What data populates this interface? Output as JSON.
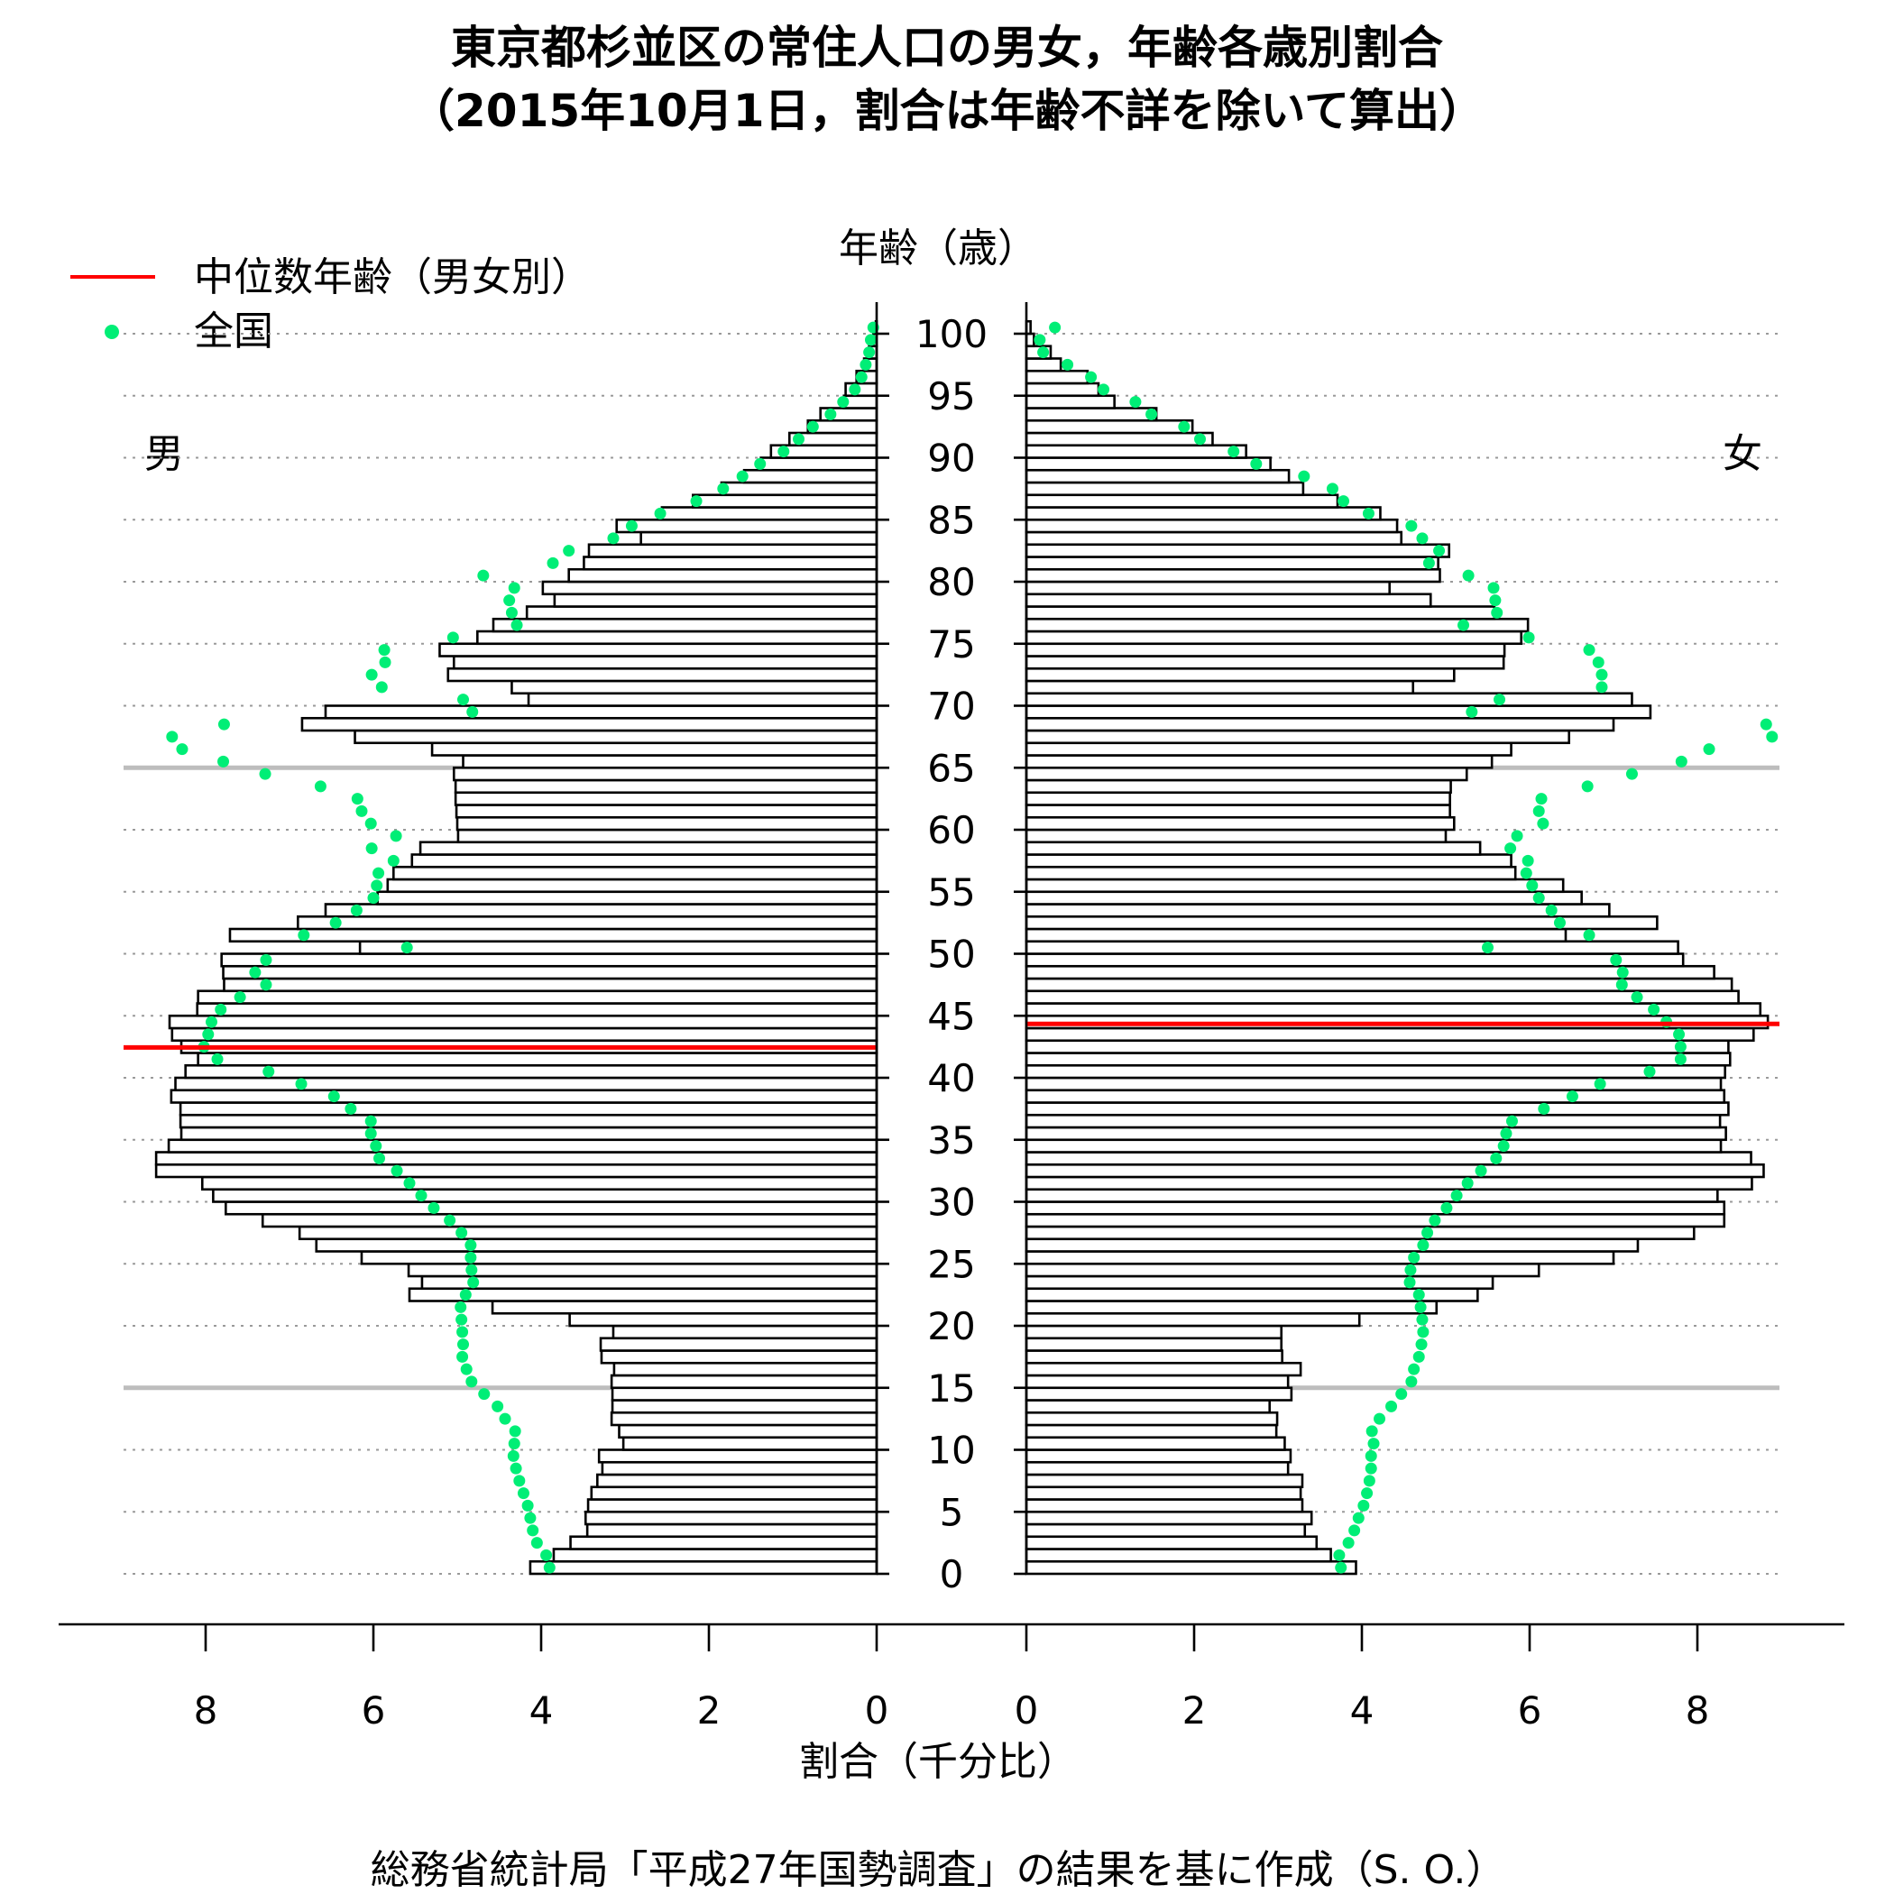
{
  "chart_data": {
    "type": "bar",
    "title": "東京都杉並区の常住人口の男女，年齢各歳別割合",
    "subtitle": "（2015年10月1日，割合は年齢不詳を除いて算出）",
    "ylabel": "年齢（歳）",
    "xlabel": "割合（千分比）",
    "source": "総務省統計局「平成27年国勢調査」の結果を基に作成（S. O.）",
    "panel_labels": {
      "male": "男",
      "female": "女"
    },
    "legend": {
      "median_label": "中位数年齢（男女別）",
      "national_label": "全国",
      "placement": "top-left"
    },
    "y_ticks": [
      "0",
      "5",
      "10",
      "15",
      "20",
      "25",
      "30",
      "35",
      "40",
      "45",
      "50",
      "55",
      "60",
      "65",
      "70",
      "75",
      "80",
      "85",
      "90",
      "95",
      "100"
    ],
    "x_ticks_male": [
      "8",
      "6",
      "4",
      "2",
      "0"
    ],
    "x_ticks_female": [
      "0",
      "2",
      "4",
      "6",
      "8"
    ],
    "ylim": [
      0,
      100
    ],
    "xlim": [
      0,
      9
    ],
    "reference_ages": [
      15,
      65
    ],
    "colors": {
      "median": "#ff0000",
      "national": "#00ee76",
      "bars": "#ffffff",
      "outline": "#000000"
    },
    "ages": [
      0,
      1,
      2,
      3,
      4,
      5,
      6,
      7,
      8,
      9,
      10,
      11,
      12,
      13,
      14,
      15,
      16,
      17,
      18,
      19,
      20,
      21,
      22,
      23,
      24,
      25,
      26,
      27,
      28,
      29,
      30,
      31,
      32,
      33,
      34,
      35,
      36,
      37,
      38,
      39,
      40,
      41,
      42,
      43,
      44,
      45,
      46,
      47,
      48,
      49,
      50,
      51,
      52,
      53,
      54,
      55,
      56,
      57,
      58,
      59,
      60,
      61,
      62,
      63,
      64,
      65,
      66,
      67,
      68,
      69,
      70,
      71,
      72,
      73,
      74,
      75,
      76,
      77,
      78,
      79,
      80,
      81,
      82,
      83,
      84,
      85,
      86,
      87,
      88,
      89,
      90,
      91,
      92,
      93,
      94,
      95,
      96,
      97,
      98,
      99,
      100
    ],
    "series": [
      {
        "name": "男",
        "values": [
          4.13,
          3.85,
          3.65,
          3.45,
          3.47,
          3.44,
          3.4,
          3.33,
          3.27,
          3.31,
          3.02,
          3.07,
          3.16,
          3.15,
          3.15,
          3.16,
          3.13,
          3.28,
          3.29,
          3.14,
          3.66,
          4.58,
          5.57,
          5.42,
          5.58,
          6.14,
          6.68,
          6.88,
          7.32,
          7.76,
          7.91,
          8.04,
          8.59,
          8.59,
          8.44,
          8.29,
          8.3,
          8.3,
          8.41,
          8.36,
          8.24,
          8.09,
          8.29,
          8.4,
          8.43,
          8.1,
          8.09,
          7.78,
          7.79,
          7.81,
          6.16,
          7.71,
          6.9,
          6.57,
          5.95,
          5.83,
          5.76,
          5.54,
          5.44,
          4.99,
          5.0,
          5.01,
          5.02,
          5.02,
          5.04,
          4.93,
          5.3,
          6.22,
          6.85,
          6.57,
          4.15,
          4.35,
          5.11,
          5.04,
          5.21,
          4.76,
          4.57,
          4.17,
          3.84,
          3.98,
          3.67,
          3.49,
          3.43,
          2.81,
          3.1,
          2.56,
          2.19,
          1.85,
          1.58,
          1.38,
          1.26,
          1.04,
          0.82,
          0.67,
          0.39,
          0.37,
          0.24,
          0.15,
          0.09,
          0.04,
          0.01
        ]
      },
      {
        "name": "女",
        "values": [
          3.93,
          3.63,
          3.46,
          3.32,
          3.4,
          3.29,
          3.27,
          3.29,
          3.12,
          3.15,
          3.08,
          2.98,
          2.99,
          2.9,
          3.16,
          3.12,
          3.27,
          3.05,
          3.04,
          3.04,
          3.97,
          4.89,
          5.38,
          5.56,
          6.11,
          7.0,
          7.29,
          7.96,
          8.32,
          8.32,
          8.24,
          8.65,
          8.79,
          8.64,
          8.28,
          8.34,
          8.27,
          8.37,
          8.32,
          8.28,
          8.33,
          8.39,
          8.37,
          8.67,
          8.84,
          8.75,
          8.49,
          8.41,
          8.2,
          7.83,
          7.77,
          6.43,
          7.52,
          6.95,
          6.62,
          6.4,
          5.83,
          5.78,
          5.41,
          5.0,
          5.1,
          5.05,
          5.05,
          5.06,
          5.25,
          5.55,
          5.78,
          6.47,
          7.0,
          7.44,
          7.22,
          4.61,
          5.1,
          5.69,
          5.7,
          5.9,
          5.98,
          5.58,
          4.82,
          4.33,
          4.93,
          4.91,
          5.04,
          4.47,
          4.42,
          4.22,
          3.71,
          3.3,
          3.13,
          2.91,
          2.62,
          2.22,
          1.98,
          1.55,
          1.05,
          0.86,
          0.73,
          0.41,
          0.29,
          0.09,
          0.05
        ]
      },
      {
        "name": "全国",
        "values_male": [
          3.9,
          3.94,
          4.05,
          4.1,
          4.13,
          4.16,
          4.21,
          4.26,
          4.3,
          4.33,
          4.32,
          4.31,
          4.43,
          4.52,
          4.68,
          4.83,
          4.89,
          4.94,
          4.93,
          4.94,
          4.95,
          4.96,
          4.9,
          4.81,
          4.83,
          4.84,
          4.84,
          4.95,
          5.09,
          5.28,
          5.43,
          5.57,
          5.72,
          5.93,
          5.97,
          6.03,
          6.03,
          6.27,
          6.47,
          6.86,
          7.25,
          7.86,
          8.02,
          7.97,
          7.93,
          7.82,
          7.59,
          7.28,
          7.41,
          7.28,
          5.6,
          6.83,
          6.45,
          6.2,
          6.0,
          5.96,
          5.94,
          5.76,
          6.02,
          5.73,
          6.03,
          6.14,
          6.19,
          6.63,
          7.29,
          7.79,
          8.28,
          8.4,
          7.78,
          4.82,
          4.93,
          5.9,
          6.02,
          5.86,
          5.87,
          5.05,
          4.29,
          4.35,
          4.38,
          4.32,
          4.69,
          3.86,
          3.67,
          3.14,
          2.92,
          2.58,
          2.15,
          1.83,
          1.6,
          1.39,
          1.11,
          0.93,
          0.76,
          0.55,
          0.4,
          0.26,
          0.18,
          0.13,
          0.09,
          0.07,
          0.04
        ],
        "values_female": [
          3.75,
          3.73,
          3.84,
          3.91,
          3.96,
          4.02,
          4.06,
          4.09,
          4.11,
          4.11,
          4.14,
          4.12,
          4.21,
          4.35,
          4.47,
          4.59,
          4.62,
          4.68,
          4.71,
          4.73,
          4.72,
          4.7,
          4.68,
          4.57,
          4.58,
          4.62,
          4.73,
          4.78,
          4.87,
          5.01,
          5.13,
          5.26,
          5.42,
          5.6,
          5.69,
          5.72,
          5.79,
          6.17,
          6.51,
          6.84,
          7.43,
          7.8,
          7.8,
          7.78,
          7.63,
          7.48,
          7.28,
          7.1,
          7.11,
          7.03,
          5.5,
          6.71,
          6.36,
          6.26,
          6.11,
          6.03,
          5.96,
          5.98,
          5.77,
          5.85,
          6.16,
          6.11,
          6.14,
          6.69,
          7.22,
          7.81,
          8.14,
          8.89,
          8.82,
          5.31,
          5.64,
          6.86,
          6.86,
          6.82,
          6.71,
          5.99,
          5.21,
          5.61,
          5.59,
          5.57,
          5.27,
          4.8,
          4.92,
          4.72,
          4.59,
          4.08,
          3.78,
          3.65,
          3.31,
          2.74,
          2.47,
          2.07,
          1.88,
          1.49,
          1.3,
          0.92,
          0.77,
          0.49,
          0.2,
          0.16,
          0.34
        ]
      },
      {
        "name": "中位数年齢（男女別）",
        "median_male": 42.45,
        "median_female": 44.35
      }
    ]
  }
}
